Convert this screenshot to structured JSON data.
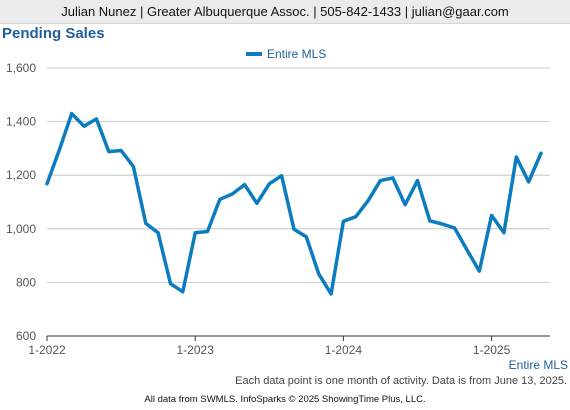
{
  "header": {
    "text": "Julian Nunez | Greater Albuquerque Assoc. | 505-842-1433 | julian@gaar.com"
  },
  "chart_data": {
    "type": "line",
    "title": "Pending Sales",
    "ylim": [
      600,
      1600
    ],
    "yticks": [
      "600",
      "800",
      "1,000",
      "1,200",
      "1,400",
      "1,600"
    ],
    "ytick_values": [
      600,
      800,
      1000,
      1200,
      1400,
      1600
    ],
    "xtick_labels": [
      "1-2022",
      "1-2023",
      "1-2024",
      "1-2025"
    ],
    "legend_position": "top-center",
    "grid": true,
    "series": [
      {
        "name": "Entire MLS",
        "color": "#0b7cc0",
        "values": [
          1168,
          1295,
          1430,
          1383,
          1410,
          1288,
          1292,
          1232,
          1020,
          985,
          795,
          765,
          985,
          990,
          1110,
          1130,
          1165,
          1095,
          1168,
          1198,
          998,
          970,
          832,
          757,
          1028,
          1045,
          1105,
          1180,
          1190,
          1090,
          1180,
          1030,
          1018,
          1003,
          922,
          842,
          1050,
          985,
          1268,
          1175,
          1282
        ]
      }
    ],
    "corner_label": "Entire MLS"
  },
  "note": "Each data point is one month of activity. Data is from June 13, 2025.",
  "footer": "All data from SWMLS. InfoSparks © 2025 ShowingTime Plus, LLC."
}
